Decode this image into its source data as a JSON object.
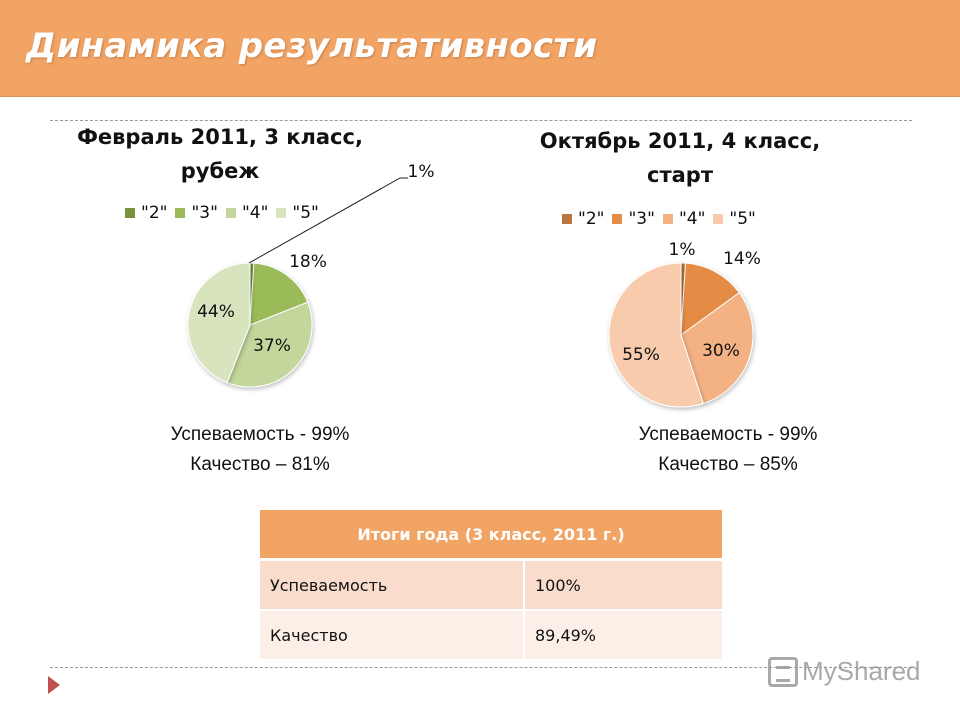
{
  "slide": {
    "title": "Динамика результативности"
  },
  "chart_data": [
    {
      "type": "pie",
      "title_line1": "Февраль 2011, 3 класс,",
      "title_line2": "рубеж",
      "categories": [
        "\"2\"",
        "\"3\"",
        "\"4\"",
        "\"5\""
      ],
      "values": [
        1,
        18,
        37,
        44
      ],
      "labels": [
        "1%",
        "18%",
        "37%",
        "44%"
      ],
      "colors": [
        "#77933c",
        "#9bbb59",
        "#c3d69b",
        "#d7e4bd"
      ],
      "legend": "top"
    },
    {
      "type": "pie",
      "title_line1": "Октябрь 2011, 4 класс,",
      "title_line2": "старт",
      "categories": [
        "\"2\"",
        "\"3\"",
        "\"4\"",
        "\"5\""
      ],
      "values": [
        1,
        14,
        30,
        55
      ],
      "labels": [
        "1%",
        "14%",
        "30%",
        "55%"
      ],
      "colors": [
        "#b9753d",
        "#e48c45",
        "#f4b183",
        "#f8cbad"
      ],
      "legend": "top"
    }
  ],
  "stats": [
    {
      "line1": "Успеваемость  - 99%",
      "line2": "Качество – 81%"
    },
    {
      "line1": "Успеваемость  - 99%",
      "line2": "Качество – 85%"
    }
  ],
  "summary": {
    "header": "Итоги года (3 класс, 2011 г.)",
    "rows": [
      {
        "label": "Успеваемость",
        "value": "100%"
      },
      {
        "label": "Качество",
        "value": "89,49%"
      }
    ]
  },
  "watermark": {
    "text": "MyShared"
  }
}
